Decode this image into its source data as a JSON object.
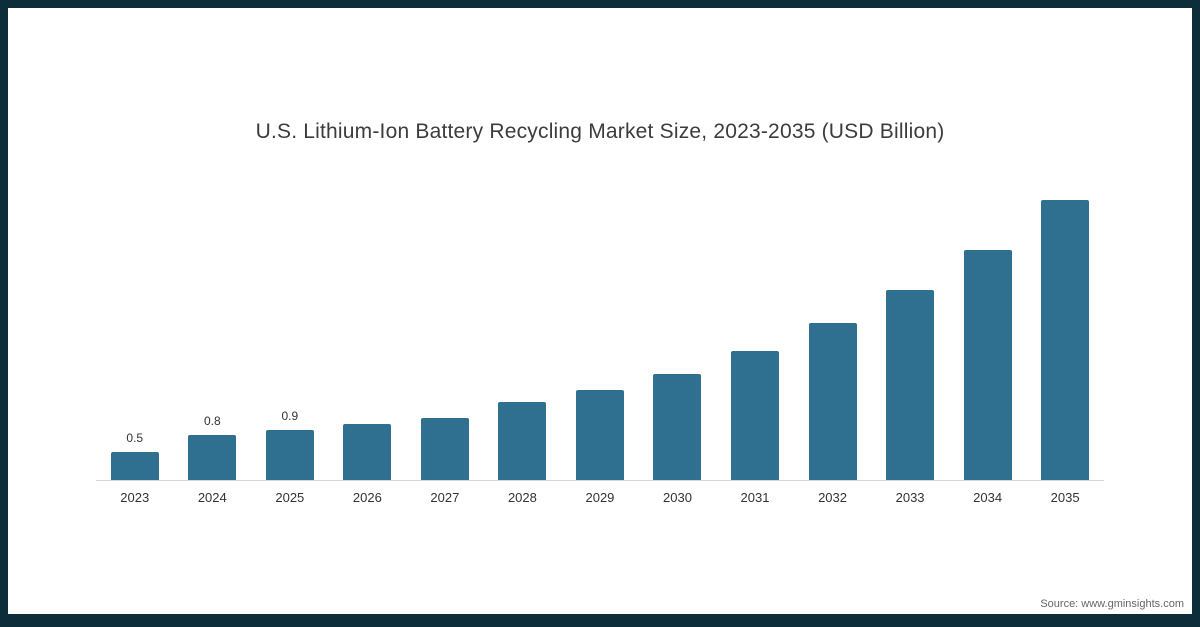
{
  "title": "U.S. Lithium-Ion Battery Recycling Market Size, 2023-2035 (USD Billion)",
  "source": "Source: www.gminsights.com",
  "colors": {
    "bar": "#2f6f8f",
    "frame_border": "#0e2d3a",
    "axis_line": "#d6d6d6",
    "title_text": "#3c3c3c",
    "tick_text": "#333333",
    "source_text": "#666666"
  },
  "chart_data": {
    "type": "bar",
    "title": "U.S. Lithium-Ion Battery Recycling Market Size, 2023-2035 (USD Billion)",
    "categories": [
      "2023",
      "2024",
      "2025",
      "2026",
      "2027",
      "2028",
      "2029",
      "2030",
      "2031",
      "2032",
      "2033",
      "2034",
      "2035"
    ],
    "values": [
      0.5,
      0.8,
      0.9,
      1.0,
      1.1,
      1.4,
      1.6,
      1.9,
      2.3,
      2.8,
      3.4,
      4.1,
      5.0
    ],
    "data_labels": [
      "0.5",
      "0.8",
      "0.9",
      "",
      "",
      "",
      "",
      "",
      "",
      "",
      "",
      "",
      ""
    ],
    "xlabel": "",
    "ylabel": "USD Billion",
    "ylim": [
      0,
      5.5
    ],
    "grid": false,
    "legend": false
  }
}
